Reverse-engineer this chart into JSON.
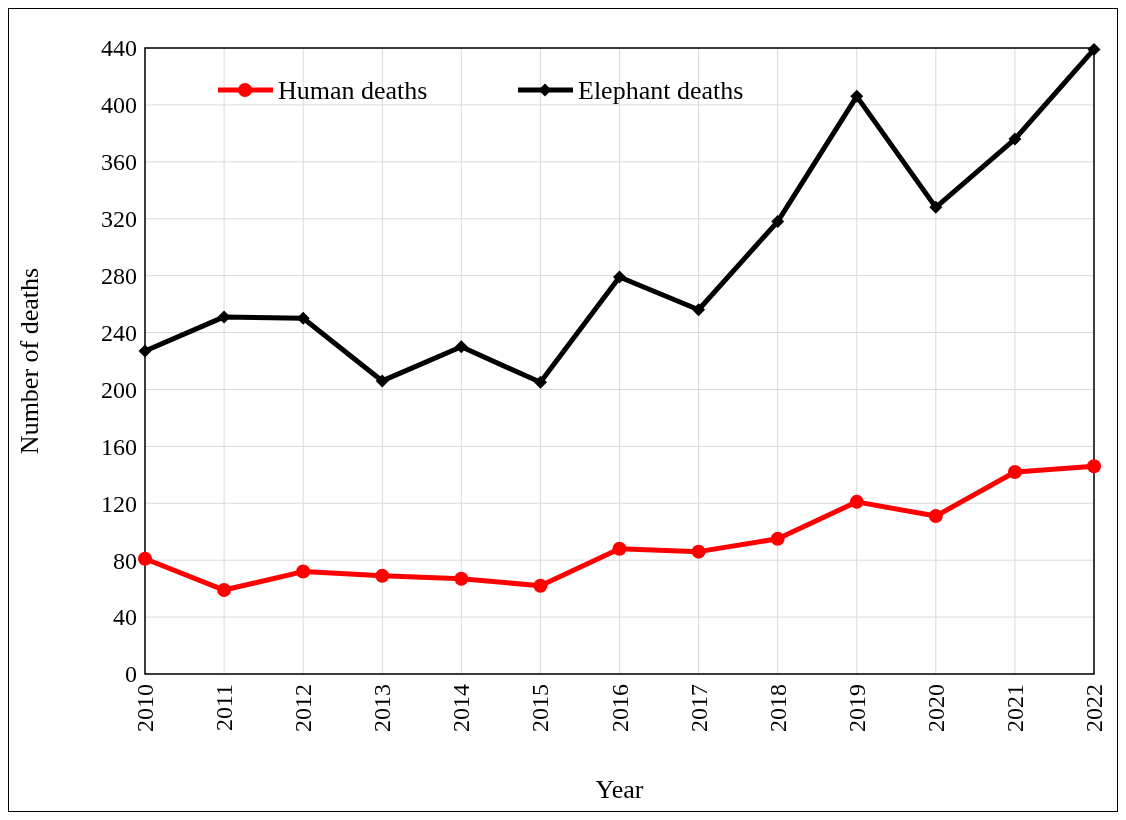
{
  "chart_data": {
    "type": "line",
    "xlabel": "Year",
    "ylabel": "Number of deaths",
    "categories": [
      "2010",
      "2011",
      "2012",
      "2013",
      "2014",
      "2015",
      "2016",
      "2017",
      "2018",
      "2019",
      "2020",
      "2021",
      "2022"
    ],
    "series": [
      {
        "name": "Human deaths",
        "color": "#ff0000",
        "marker": "circle",
        "values": [
          81,
          59,
          72,
          69,
          67,
          62,
          88,
          86,
          95,
          121,
          111,
          142,
          146
        ]
      },
      {
        "name": "Elephant deaths",
        "color": "#000000",
        "marker": "diamond",
        "values": [
          227,
          251,
          250,
          206,
          230,
          205,
          279,
          256,
          318,
          406,
          328,
          376,
          439
        ]
      }
    ],
    "ylim": [
      0,
      440
    ],
    "yticks": [
      0,
      40,
      80,
      120,
      160,
      200,
      240,
      280,
      320,
      360,
      400,
      440
    ],
    "grid": true,
    "legend": "top left"
  }
}
